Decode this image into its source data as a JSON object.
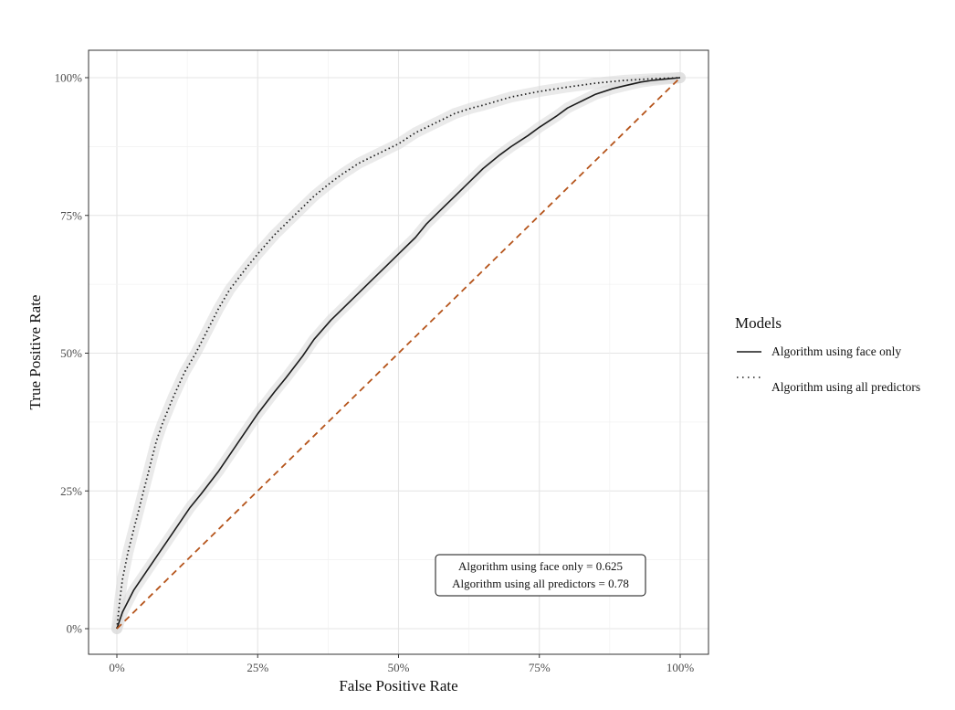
{
  "chart_data": {
    "type": "line",
    "title": "",
    "xlabel": "False Positive Rate",
    "ylabel": "True Positive Rate",
    "xlim": [
      0,
      1
    ],
    "ylim": [
      0,
      1
    ],
    "x_ticks": [
      0,
      0.25,
      0.5,
      0.75,
      1
    ],
    "y_ticks": [
      0,
      0.25,
      0.5,
      0.75,
      1
    ],
    "x_tick_labels": [
      "0%",
      "25%",
      "50%",
      "75%",
      "100%"
    ],
    "y_tick_labels": [
      "0%",
      "25%",
      "50%",
      "75%",
      "100%"
    ],
    "grid": true,
    "legend": {
      "title": "Models",
      "position": "right"
    },
    "series": [
      {
        "name": "Algorithm using face only",
        "line_style": "solid",
        "color": "#1a1a1a",
        "confidence_band": true,
        "x": [
          0,
          0.01,
          0.02,
          0.03,
          0.05,
          0.07,
          0.09,
          0.11,
          0.13,
          0.15,
          0.18,
          0.2,
          0.22,
          0.25,
          0.28,
          0.3,
          0.33,
          0.35,
          0.38,
          0.4,
          0.43,
          0.45,
          0.48,
          0.5,
          0.53,
          0.55,
          0.58,
          0.6,
          0.63,
          0.65,
          0.68,
          0.7,
          0.73,
          0.75,
          0.78,
          0.8,
          0.83,
          0.85,
          0.88,
          0.9,
          0.93,
          0.95,
          0.98,
          1
        ],
        "y": [
          0,
          0.03,
          0.05,
          0.07,
          0.1,
          0.13,
          0.16,
          0.19,
          0.22,
          0.245,
          0.285,
          0.315,
          0.345,
          0.39,
          0.43,
          0.455,
          0.495,
          0.525,
          0.56,
          0.58,
          0.61,
          0.63,
          0.66,
          0.68,
          0.71,
          0.735,
          0.765,
          0.785,
          0.815,
          0.835,
          0.86,
          0.875,
          0.895,
          0.91,
          0.93,
          0.945,
          0.96,
          0.97,
          0.98,
          0.985,
          0.992,
          0.995,
          0.998,
          1
        ]
      },
      {
        "name": "Algorithm using all predictors",
        "line_style": "dotted",
        "color": "#1a1a1a",
        "confidence_band": true,
        "x": [
          0,
          0.005,
          0.01,
          0.02,
          0.03,
          0.04,
          0.05,
          0.06,
          0.07,
          0.08,
          0.1,
          0.12,
          0.14,
          0.16,
          0.18,
          0.2,
          0.23,
          0.25,
          0.28,
          0.3,
          0.33,
          0.35,
          0.38,
          0.4,
          0.43,
          0.45,
          0.48,
          0.5,
          0.53,
          0.55,
          0.58,
          0.6,
          0.63,
          0.65,
          0.7,
          0.75,
          0.8,
          0.85,
          0.9,
          0.95,
          1
        ],
        "y": [
          0,
          0.05,
          0.09,
          0.14,
          0.18,
          0.22,
          0.26,
          0.3,
          0.34,
          0.37,
          0.42,
          0.465,
          0.5,
          0.54,
          0.58,
          0.615,
          0.655,
          0.68,
          0.715,
          0.735,
          0.765,
          0.785,
          0.81,
          0.825,
          0.845,
          0.855,
          0.87,
          0.88,
          0.9,
          0.91,
          0.925,
          0.935,
          0.945,
          0.95,
          0.965,
          0.975,
          0.983,
          0.99,
          0.995,
          0.998,
          1
        ]
      }
    ],
    "reference_line": {
      "x": [
        0,
        1
      ],
      "y": [
        0,
        1
      ],
      "line_style": "dashed",
      "color": "#b5541b"
    },
    "annotation": {
      "position": "bottom-right",
      "lines": [
        "Algorithm using face only = 0.625",
        "Algorithm using all predictors = 0.78"
      ]
    }
  }
}
